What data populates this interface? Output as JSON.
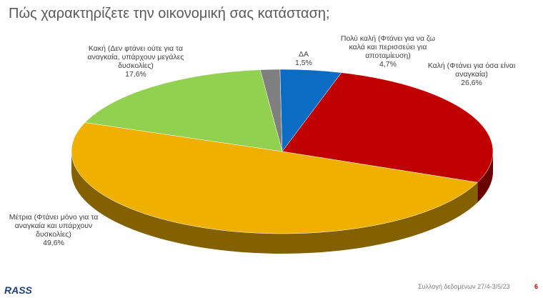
{
  "chart_data": {
    "type": "pie3d",
    "title": "Πώς χαρακτηρίζετε την οικονομική σας κατάσταση;",
    "categories": [
      "ΔΑ",
      "Πολύ καλή (Φτάνει για να ζω καλά και περισσεύει για αποταμίευση)",
      "Καλή (Φτάνει για όσα είναι αναγκαία)",
      "Μέτρια (Φτάνει μόνο για τα αναγκαία και υπάρχουν δυσκολίες)",
      "Κακή (Δεν φτάνει ούτε για τα αναγκαία, υπάρχουν μεγάλες δυσκολίες)"
    ],
    "values": [
      1.5,
      4.7,
      26.6,
      49.6,
      17.6
    ],
    "value_labels": [
      "1,5%",
      "4,7%",
      "26,6%",
      "49,6%",
      "17,6%"
    ],
    "colors": [
      "#7f7f7f",
      "#0b6cc4",
      "#c00000",
      "#f0b000",
      "#92d050"
    ]
  },
  "footer": {
    "source": "Συλλογή δεδομένων 27/4-3/5/23",
    "page": "6",
    "logo": "RASS"
  }
}
